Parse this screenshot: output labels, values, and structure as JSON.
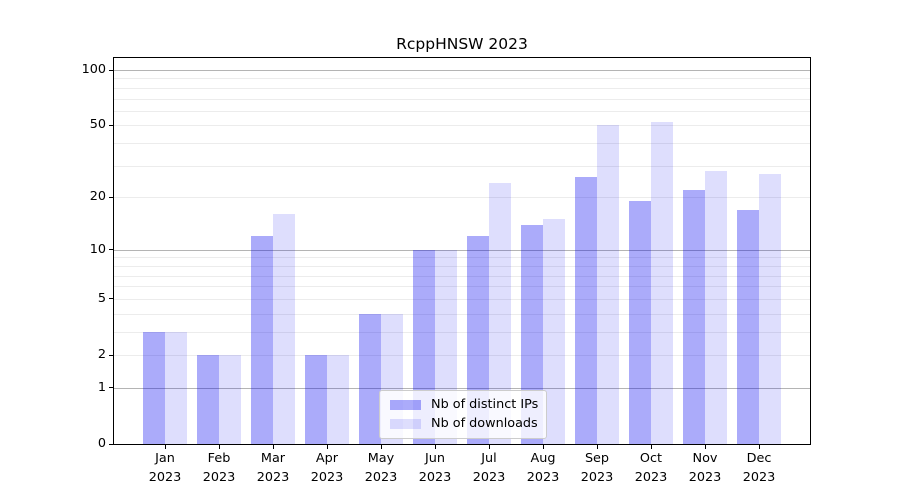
{
  "figure": {
    "title": "RcppHNSW 2023"
  },
  "legend": {
    "items": [
      {
        "label": "Nb of distinct IPs",
        "color": "rgba(0,0,240,0.33)"
      },
      {
        "label": "Nb of downloads",
        "color": "rgba(0,0,240,0.13)"
      }
    ]
  },
  "chart_data": {
    "type": "bar",
    "title": "RcppHNSW 2023",
    "xlabel": "",
    "ylabel": "",
    "year": "2023",
    "month_short": [
      "Jan",
      "Feb",
      "Mar",
      "Apr",
      "May",
      "Jun",
      "Jul",
      "Aug",
      "Sep",
      "Oct",
      "Nov",
      "Dec"
    ],
    "categories": [
      "Jan 2023",
      "Feb 2023",
      "Mar 2023",
      "Apr 2023",
      "May 2023",
      "Jun 2023",
      "Jul 2023",
      "Aug 2023",
      "Sep 2023",
      "Oct 2023",
      "Nov 2023",
      "Dec 2023"
    ],
    "series": [
      {
        "name": "Nb of distinct IPs",
        "values": [
          3,
          2,
          12,
          2,
          4,
          10,
          12,
          14,
          26,
          19,
          22,
          17
        ]
      },
      {
        "name": "Nb of downloads",
        "values": [
          3,
          2,
          16,
          2,
          4,
          10,
          24,
          15,
          50,
          52,
          28,
          27
        ]
      }
    ],
    "yscale": "log1p",
    "ylim": [
      0,
      116
    ],
    "y_ticks": [
      0,
      1,
      2,
      5,
      10,
      20,
      50,
      100
    ],
    "y_major_grid": [
      1,
      10,
      100
    ],
    "y_minor_grid": [
      2,
      3,
      4,
      5,
      6,
      7,
      8,
      9,
      20,
      30,
      40,
      50,
      60,
      70,
      80,
      90
    ],
    "grid": true,
    "legend_position": "lower center inside"
  },
  "colors": {
    "bar_dark": "rgba(0,0,240,0.33)",
    "bar_light": "rgba(0,0,240,0.13)",
    "grid_major": "#b4b4b4",
    "grid_minor": "#ececec",
    "spine": "#000000",
    "text": "#000000",
    "legend_bg": "rgba(255,255,255,0.8)",
    "legend_border": "#cccccc"
  }
}
